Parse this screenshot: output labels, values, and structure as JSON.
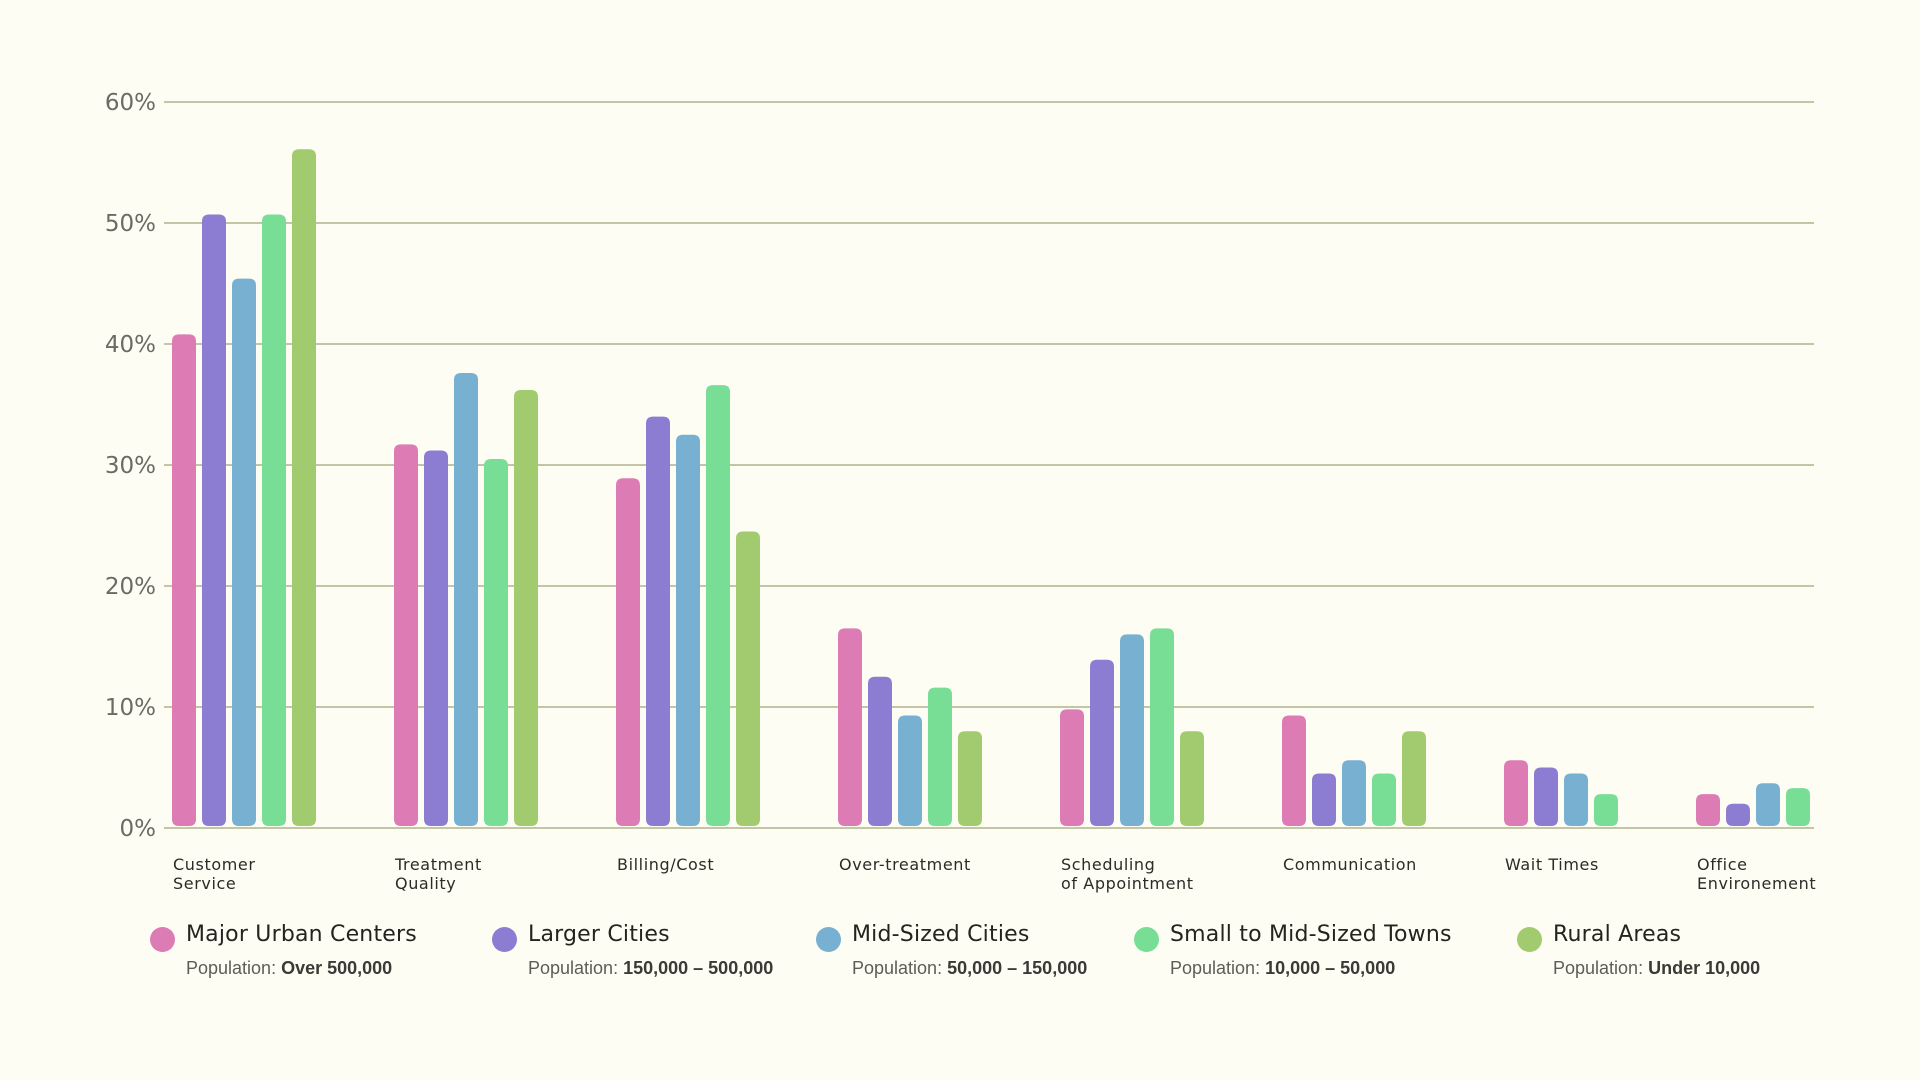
{
  "colors": {
    "background": "#fdfdf3",
    "grid": "#a3a37a",
    "series": [
      "#dc7bb4",
      "#8c7dd2",
      "#78b0d2",
      "#78de96",
      "#a2ca6e"
    ]
  },
  "chart_data": {
    "type": "bar",
    "title": "",
    "xlabel": "",
    "ylabel": "",
    "ylim": [
      0,
      60
    ],
    "yticks": [
      "0%",
      "10%",
      "20%",
      "30%",
      "40%",
      "50%",
      "60%"
    ],
    "ytick_values": [
      0,
      10,
      20,
      30,
      40,
      50,
      60
    ],
    "grid": true,
    "legend_position": "bottom",
    "categories": [
      [
        "Customer",
        "Service"
      ],
      [
        "Treatment",
        "Quality"
      ],
      [
        "Billing/Cost"
      ],
      [
        "Over-treatment"
      ],
      [
        "Scheduling",
        "of Appointment"
      ],
      [
        "Communication"
      ],
      [
        "Wait Times"
      ],
      [
        "Office",
        "Environement"
      ]
    ],
    "series": [
      {
        "name": "Major Urban Centers",
        "population_label": "Population:",
        "population": "Over 500,000",
        "values": [
          40.8,
          31.7,
          28.9,
          16.5,
          9.8,
          9.3,
          5.6,
          2.8
        ]
      },
      {
        "name": "Larger Cities",
        "population_label": "Population:",
        "population": "150,000 – 500,000",
        "values": [
          50.7,
          31.2,
          34.0,
          12.5,
          13.9,
          4.5,
          5.0,
          2.0
        ]
      },
      {
        "name": "Mid-Sized Cities",
        "population_label": "Population:",
        "population": "50,000 – 150,000",
        "values": [
          45.4,
          37.6,
          32.5,
          9.3,
          16.0,
          5.6,
          4.5,
          3.7
        ]
      },
      {
        "name": "Small to Mid-Sized Towns",
        "population_label": "Population:",
        "population": "10,000 – 50,000",
        "values": [
          50.7,
          30.5,
          36.6,
          11.6,
          16.5,
          4.5,
          2.8,
          3.3
        ]
      },
      {
        "name": "Rural Areas",
        "population_label": "Population:",
        "population": "Under 10,000",
        "values": [
          56.1,
          36.2,
          24.5,
          8.0,
          8.0,
          8.0,
          null,
          null
        ]
      }
    ]
  }
}
